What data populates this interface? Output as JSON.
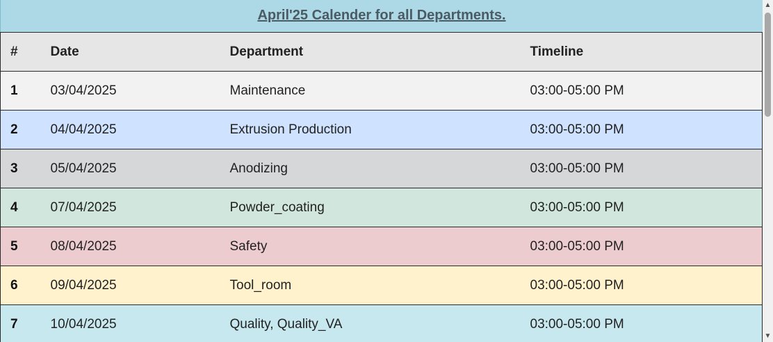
{
  "banner": {
    "title": "April'25 Calender for all Departments."
  },
  "table": {
    "headers": [
      "#",
      "Date",
      "Department",
      "Timeline"
    ],
    "rows": [
      {
        "num": "1",
        "date": "03/04/2025",
        "department": "Maintenance",
        "timeline": "03:00-05:00 PM",
        "bg": "#f2f2f2"
      },
      {
        "num": "2",
        "date": "04/04/2025",
        "department": "Extrusion Production",
        "timeline": "03:00-05:00 PM",
        "bg": "#cfe2ff"
      },
      {
        "num": "3",
        "date": "05/04/2025",
        "department": "Anodizing",
        "timeline": "03:00-05:00 PM",
        "bg": "#d6d7d8"
      },
      {
        "num": "4",
        "date": "07/04/2025",
        "department": "Powder_coating",
        "timeline": "03:00-05:00 PM",
        "bg": "#d1e7dd"
      },
      {
        "num": "5",
        "date": "08/04/2025",
        "department": "Safety",
        "timeline": "03:00-05:00 PM",
        "bg": "#eccccf"
      },
      {
        "num": "6",
        "date": "09/04/2025",
        "department": "Tool_room",
        "timeline": "03:00-05:00 PM",
        "bg": "#fff2cc"
      },
      {
        "num": "7",
        "date": "10/04/2025",
        "department": "Quality, Quality_VA",
        "timeline": "03:00-05:00 PM",
        "bg": "#c6e8ee"
      }
    ]
  },
  "colors": {
    "banner_bg": "#add8e6",
    "header_bg": "#e6e6e6"
  },
  "scrollbar": {
    "up_icon": "▲",
    "down_icon": "▼"
  }
}
